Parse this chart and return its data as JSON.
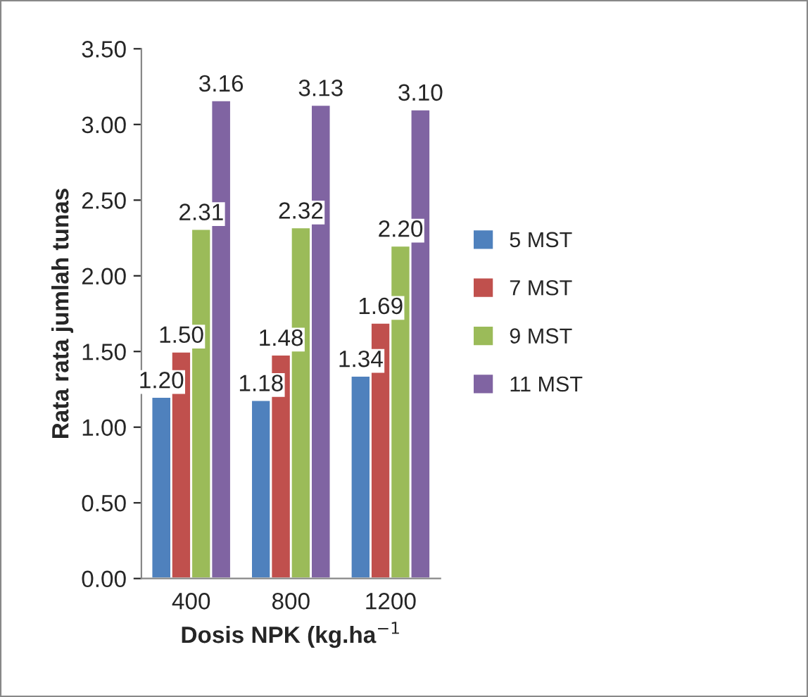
{
  "chart_data": {
    "type": "bar",
    "xlabel": "Dosis NPK (kg.ha$^{−1}$",
    "ylabel": "Rata rata jumlah tunas",
    "categories": [
      "400",
      "800",
      "1200"
    ],
    "series": [
      {
        "name": "5 MST",
        "color": "#4f81bd",
        "values": [
          1.2,
          1.18,
          1.34
        ],
        "value_labels": [
          "1.20",
          "1.18",
          "1.34"
        ]
      },
      {
        "name": "7 MST",
        "color": "#c0504d",
        "values": [
          1.5,
          1.48,
          1.69
        ],
        "value_labels": [
          "1.50",
          "1.48",
          "1.69"
        ]
      },
      {
        "name": "9 MST",
        "color": "#9bbb59",
        "values": [
          2.31,
          2.32,
          2.2
        ],
        "value_labels": [
          "2.31",
          "2.32",
          "2.20"
        ]
      },
      {
        "name": "11 MST",
        "color": "#8064a2",
        "values": [
          3.16,
          3.13,
          3.1
        ],
        "value_labels": [
          "3.16",
          "3.13",
          "3.10"
        ]
      }
    ],
    "ylim": [
      0,
      3.5
    ],
    "yticks": [
      {
        "value": 0,
        "label": "0.00"
      },
      {
        "value": 0.5,
        "label": "0.50"
      },
      {
        "value": 1,
        "label": "1.00"
      },
      {
        "value": 1.5,
        "label": "1.50"
      },
      {
        "value": 2,
        "label": "2.00"
      },
      {
        "value": 2.5,
        "label": "2.50"
      },
      {
        "value": 3,
        "label": "3.00"
      },
      {
        "value": 3.5,
        "label": "3.50"
      }
    ],
    "grid": false,
    "legend": "right"
  }
}
